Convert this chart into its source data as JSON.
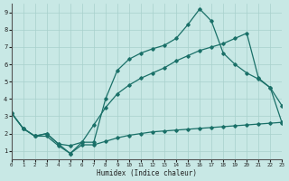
{
  "xlabel": "Humidex (Indice chaleur)",
  "xlim": [
    0,
    23
  ],
  "ylim": [
    0.5,
    9.5
  ],
  "xticks": [
    0,
    1,
    2,
    3,
    4,
    5,
    6,
    7,
    8,
    9,
    10,
    11,
    12,
    13,
    14,
    15,
    16,
    17,
    18,
    19,
    20,
    21,
    22,
    23
  ],
  "yticks": [
    1,
    2,
    3,
    4,
    5,
    6,
    7,
    8,
    9
  ],
  "bg_color": "#c8e8e5",
  "grid_color": "#a8d0cc",
  "line_color": "#1a7068",
  "line1_x": [
    0,
    1,
    2,
    3,
    4,
    5,
    6,
    7,
    8,
    9,
    10,
    11,
    12,
    13,
    14,
    15,
    16,
    17,
    18,
    19,
    20,
    21,
    22,
    23
  ],
  "line1_y": [
    3.2,
    2.3,
    1.85,
    1.85,
    1.3,
    0.85,
    1.35,
    1.35,
    1.55,
    1.75,
    1.9,
    2.0,
    2.1,
    2.15,
    2.2,
    2.25,
    2.3,
    2.35,
    2.4,
    2.45,
    2.5,
    2.55,
    2.6,
    2.65
  ],
  "line2_x": [
    0,
    1,
    2,
    3,
    4,
    5,
    6,
    7,
    8,
    9,
    10,
    11,
    12,
    13,
    14,
    15,
    16,
    17,
    18,
    19,
    20,
    21,
    22,
    23
  ],
  "line2_y": [
    3.2,
    2.3,
    1.85,
    2.0,
    1.4,
    1.3,
    1.5,
    2.5,
    3.5,
    4.3,
    4.8,
    5.2,
    5.5,
    5.8,
    6.2,
    6.5,
    6.8,
    7.0,
    7.2,
    7.5,
    7.8,
    5.2,
    4.65,
    3.6
  ],
  "line3_x": [
    0,
    1,
    2,
    3,
    4,
    5,
    6,
    7,
    8,
    9,
    10,
    11,
    12,
    13,
    14,
    15,
    16,
    17,
    18,
    19,
    20,
    21,
    22,
    23
  ],
  "line3_y": [
    3.2,
    2.3,
    1.85,
    2.0,
    1.4,
    0.85,
    1.5,
    1.5,
    4.0,
    5.65,
    6.3,
    6.65,
    6.9,
    7.1,
    7.5,
    8.3,
    9.2,
    8.5,
    6.65,
    6.0,
    5.5,
    5.15,
    4.65,
    2.6
  ]
}
